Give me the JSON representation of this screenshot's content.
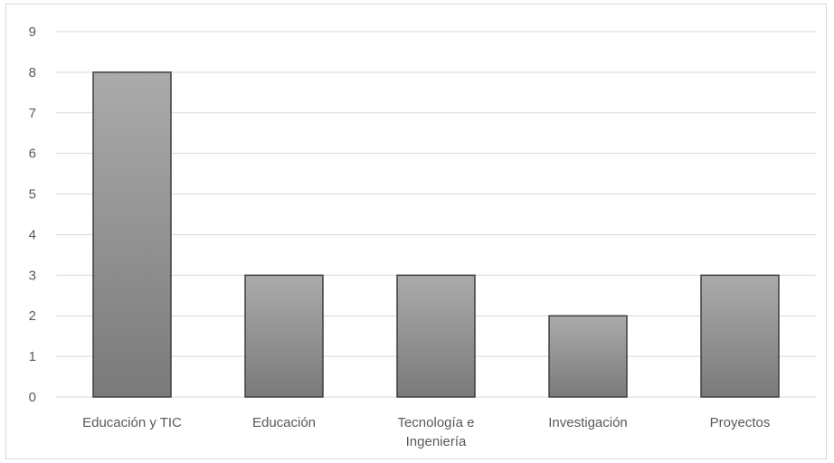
{
  "chart_data": {
    "type": "bar",
    "categories": [
      [
        "Educación y TIC"
      ],
      [
        "Educación"
      ],
      [
        "Tecnología e",
        "Ingeniería"
      ],
      [
        "Investigación"
      ],
      [
        "Proyectos"
      ]
    ],
    "values": [
      8,
      3,
      3,
      2,
      3
    ],
    "title": "",
    "xlabel": "",
    "ylabel": "",
    "ylim": [
      0,
      9
    ],
    "yticks": [
      0,
      1,
      2,
      3,
      4,
      5,
      6,
      7,
      8,
      9
    ],
    "grid": true,
    "legend": "none",
    "colors": {
      "bar_top": "#ababab",
      "bar_bottom": "#7a7a7a",
      "bar_border": "#3f3f3f",
      "gridline": "#d9d9d9",
      "axis_text": "#595959"
    }
  }
}
